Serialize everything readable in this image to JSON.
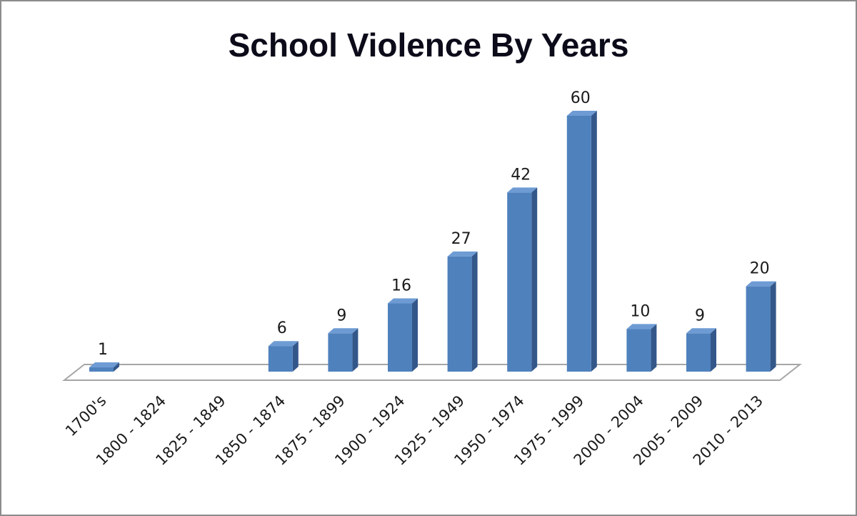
{
  "chart_data": {
    "type": "bar",
    "title": "School Violence By Years",
    "xlabel": "",
    "ylabel": "",
    "categories": [
      "1700's",
      "1800 - 1824",
      "1825 - 1849",
      "1850 - 1874",
      "1875 - 1899",
      "1900 - 1924",
      "1925 - 1949",
      "1950 - 1974",
      "1975 - 1999",
      "2000 - 2004",
      "2005 - 2009",
      "2010 - 2013"
    ],
    "values": [
      1,
      null,
      null,
      6,
      9,
      16,
      27,
      42,
      60,
      10,
      9,
      20
    ],
    "data_labels": [
      "1",
      "",
      "",
      "6",
      "9",
      "16",
      "27",
      "42",
      "60",
      "10",
      "9",
      "20"
    ],
    "ylim": [
      0,
      60
    ],
    "grid": false,
    "legend": "none",
    "bar_color": "#4f81bd",
    "bar_side_color": "#34578a",
    "bar_top_color": "#6e9bd3"
  }
}
